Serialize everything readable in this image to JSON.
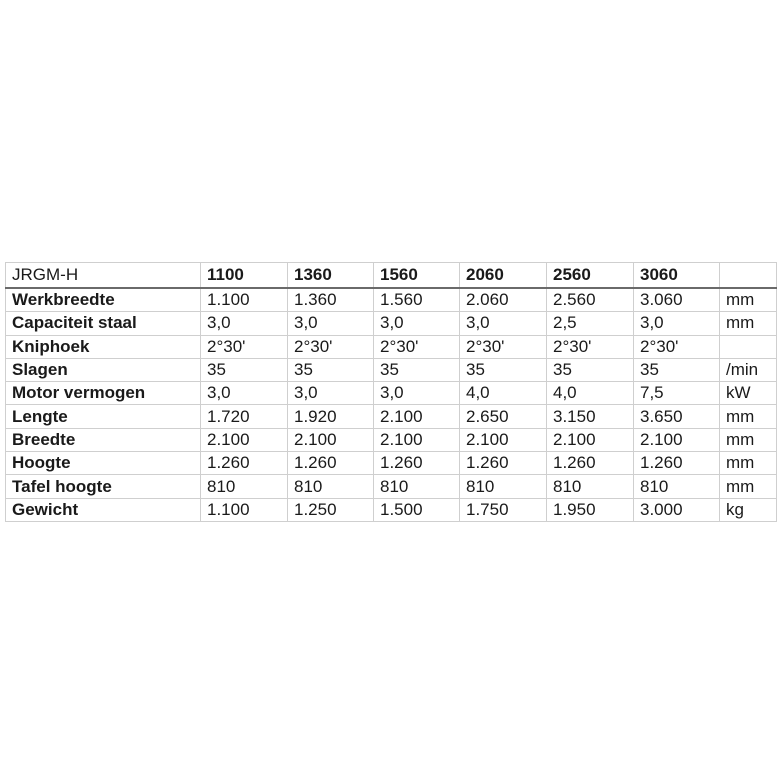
{
  "table": {
    "model_label": "JRGM-H",
    "columns": [
      "1100",
      "1360",
      "1560",
      "2060",
      "2560",
      "3060"
    ],
    "unit_header": "",
    "rows": [
      {
        "label": "Werkbreedte",
        "values": [
          "1.100",
          "1.360",
          "1.560",
          "2.060",
          "2.560",
          "3.060"
        ],
        "unit": "mm"
      },
      {
        "label": "Capaciteit staal",
        "values": [
          "3,0",
          "3,0",
          "3,0",
          "3,0",
          "2,5",
          "3,0"
        ],
        "unit": "mm"
      },
      {
        "label": "Kniphoek",
        "values": [
          "2°30'",
          "2°30'",
          "2°30'",
          "2°30'",
          "2°30'",
          "2°30'"
        ],
        "unit": ""
      },
      {
        "label": "Slagen",
        "values": [
          "35",
          "35",
          "35",
          "35",
          "35",
          "35"
        ],
        "unit": "/min"
      },
      {
        "label": "Motor vermogen",
        "values": [
          "3,0",
          "3,0",
          "3,0",
          "4,0",
          "4,0",
          "7,5"
        ],
        "unit": "kW"
      },
      {
        "label": "Lengte",
        "values": [
          "1.720",
          "1.920",
          "2.100",
          "2.650",
          "3.150",
          "3.650"
        ],
        "unit": "mm"
      },
      {
        "label": "Breedte",
        "values": [
          "2.100",
          "2.100",
          "2.100",
          "2.100",
          "2.100",
          "2.100"
        ],
        "unit": "mm"
      },
      {
        "label": "Hoogte",
        "values": [
          "1.260",
          "1.260",
          "1.260",
          "1.260",
          "1.260",
          "1.260"
        ],
        "unit": "mm"
      },
      {
        "label": "Tafel hoogte",
        "values": [
          "810",
          "810",
          "810",
          "810",
          "810",
          "810"
        ],
        "unit": "mm"
      },
      {
        "label": "Gewicht",
        "values": [
          "1.100",
          "1.250",
          "1.500",
          "1.750",
          "1.950",
          "3.000"
        ],
        "unit": "kg"
      }
    ]
  }
}
